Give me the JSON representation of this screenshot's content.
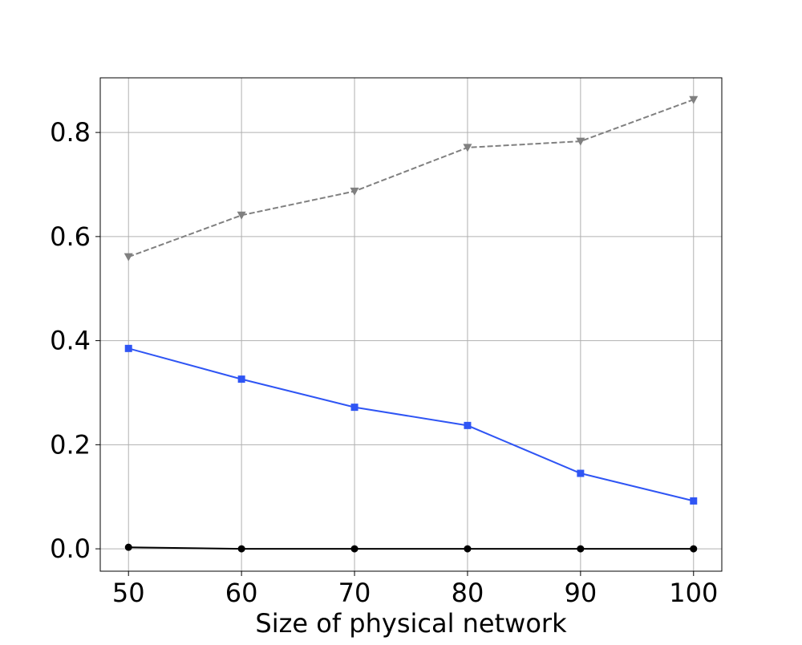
{
  "chart_data": {
    "type": "line",
    "title": "",
    "xlabel": "Size of physical network",
    "ylabel": "",
    "x": [
      50,
      60,
      70,
      80,
      90,
      100
    ],
    "xticks": [
      "50",
      "60",
      "70",
      "80",
      "90",
      "100"
    ],
    "xlim": [
      47.5,
      102.5
    ],
    "yticks": [
      "0.0",
      "0.2",
      "0.4",
      "0.6",
      "0.8"
    ],
    "ytick_values": [
      0.0,
      0.2,
      0.4,
      0.6,
      0.8
    ],
    "ylim": [
      -0.043,
      0.905
    ],
    "grid": true,
    "legend": false,
    "series": [
      {
        "color": "#808080",
        "line_style": "dashed",
        "marker": "triangle-down",
        "values": [
          0.561,
          0.641,
          0.687,
          0.771,
          0.783,
          0.863
        ]
      },
      {
        "color": "#2f55f4",
        "line_style": "solid",
        "marker": "square",
        "values": [
          0.385,
          0.326,
          0.272,
          0.237,
          0.145,
          0.092
        ]
      },
      {
        "color": "#000000",
        "line_style": "solid",
        "marker": "circle",
        "values": [
          0.003,
          0.0,
          0.0,
          0.0,
          0.0,
          0.0
        ]
      }
    ]
  }
}
